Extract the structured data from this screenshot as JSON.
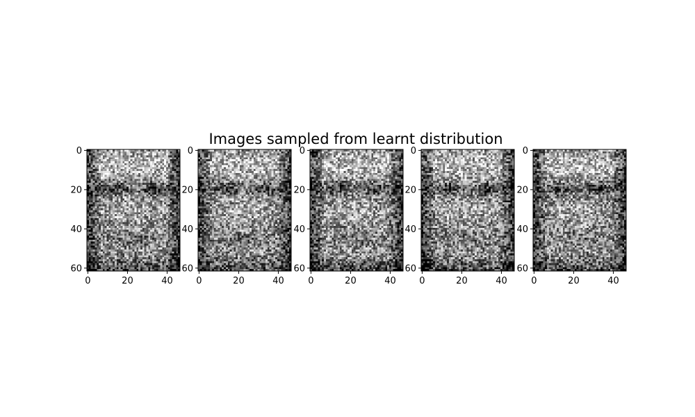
{
  "chart_data": {
    "type": "heatmap",
    "title": "Images sampled from learnt distribution",
    "colormap": "gray",
    "image_shape": [
      62,
      47
    ],
    "panel_count": 5,
    "xlim": [
      -0.5,
      46.5
    ],
    "ylim": [
      61.5,
      -0.5
    ],
    "x_ticks": [
      0,
      20,
      40
    ],
    "y_ticks": [
      0,
      20,
      40,
      60
    ],
    "x_tick_labels": [
      "0",
      "20",
      "40"
    ],
    "y_tick_labels": [
      "0",
      "20",
      "40",
      "60"
    ],
    "frame_color": "#000000",
    "background_color": "#ffffff"
  }
}
